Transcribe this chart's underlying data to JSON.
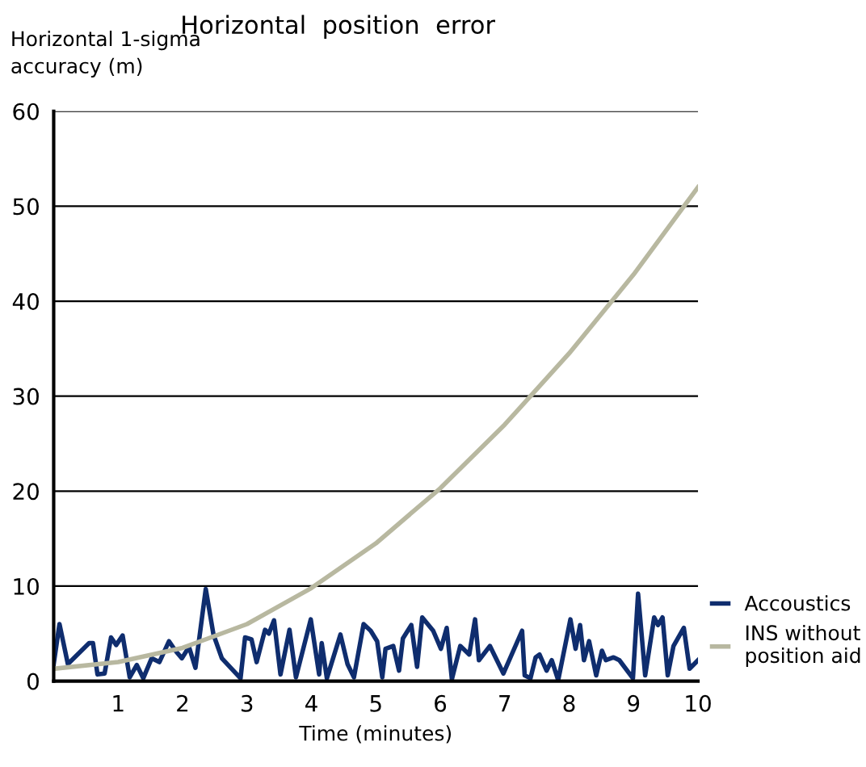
{
  "chart_data": {
    "type": "line",
    "title": "Horizontal  position  error",
    "xlabel": "Time (minutes)",
    "ylabel": "Horizontal 1-sigma\naccuracy (m)",
    "xlim": [
      0,
      10
    ],
    "ylim": [
      0,
      60
    ],
    "xticks": [
      1,
      2,
      3,
      4,
      5,
      6,
      7,
      8,
      9,
      10
    ],
    "yticks": [
      0,
      10,
      20,
      30,
      40,
      50,
      60
    ],
    "grid": "y",
    "legend": "bottom right",
    "series": [
      {
        "name": "Accoustics",
        "color": "#0f2d6e",
        "x": [
          0.0,
          0.09,
          0.22,
          0.55,
          0.61,
          0.68,
          0.79,
          0.89,
          0.97,
          1.07,
          1.18,
          1.29,
          1.39,
          1.52,
          1.64,
          1.79,
          1.89,
          1.99,
          2.1,
          2.2,
          2.36,
          2.48,
          2.61,
          2.9,
          2.97,
          3.07,
          3.15,
          3.28,
          3.34,
          3.42,
          3.52,
          3.66,
          3.76,
          3.99,
          4.12,
          4.16,
          4.24,
          4.45,
          4.56,
          4.66,
          4.81,
          4.92,
          5.02,
          5.1,
          5.15,
          5.27,
          5.36,
          5.42,
          5.55,
          5.64,
          5.72,
          5.89,
          6.01,
          6.1,
          6.18,
          6.31,
          6.45,
          6.54,
          6.6,
          6.77,
          6.98,
          7.27,
          7.31,
          7.4,
          7.48,
          7.54,
          7.65,
          7.73,
          7.83,
          8.02,
          8.1,
          8.17,
          8.23,
          8.31,
          8.42,
          8.51,
          8.57,
          8.69,
          8.78,
          8.99,
          9.07,
          9.18,
          9.32,
          9.38,
          9.45,
          9.53,
          9.62,
          9.78,
          9.87,
          10.0
        ],
        "values": [
          1.8,
          6.0,
          1.8,
          4.0,
          4.0,
          0.7,
          0.8,
          4.6,
          3.8,
          4.8,
          0.4,
          1.7,
          0.3,
          2.4,
          2.0,
          4.2,
          3.2,
          2.4,
          3.6,
          1.4,
          9.7,
          4.9,
          2.4,
          0.3,
          4.6,
          4.4,
          2.0,
          5.4,
          5.0,
          6.4,
          0.7,
          5.4,
          0.4,
          6.5,
          0.7,
          4.0,
          0.3,
          4.9,
          1.8,
          0.4,
          6.0,
          5.3,
          4.2,
          0.4,
          3.4,
          3.7,
          1.1,
          4.5,
          5.9,
          1.5,
          6.7,
          5.3,
          3.4,
          5.6,
          0.2,
          3.7,
          2.8,
          6.5,
          2.2,
          3.7,
          0.8,
          5.3,
          0.6,
          0.3,
          2.5,
          2.8,
          1.1,
          2.2,
          0.1,
          6.5,
          3.4,
          5.9,
          2.2,
          4.2,
          0.6,
          3.2,
          2.2,
          2.5,
          2.2,
          0.3,
          9.2,
          0.6,
          6.7,
          5.9,
          6.7,
          0.6,
          3.7,
          5.6,
          1.3,
          2.2
        ]
      },
      {
        "name": "INS without\nposition aid",
        "color": "#b8b8a0",
        "x": [
          0,
          1,
          2,
          3,
          4,
          5,
          6,
          7,
          8,
          9,
          10
        ],
        "values": [
          1.3,
          2.0,
          3.5,
          6.0,
          9.8,
          14.5,
          20.3,
          27.0,
          34.5,
          42.8,
          52.0
        ]
      }
    ]
  }
}
